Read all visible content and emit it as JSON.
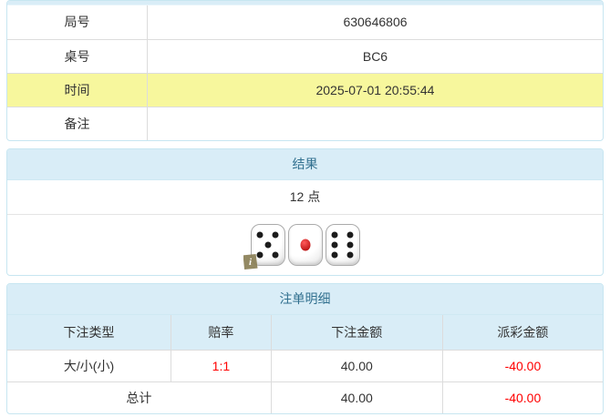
{
  "round_info": {
    "rows": [
      {
        "label": "局号",
        "value": "630646806",
        "highlight": false
      },
      {
        "label": "桌号",
        "value": "BC6",
        "highlight": false
      },
      {
        "label": "时间",
        "value": "2025-07-01 20:55:44",
        "highlight": true
      },
      {
        "label": "备注",
        "value": "",
        "highlight": false
      }
    ]
  },
  "result_panel": {
    "title": "结果",
    "points": "12 点",
    "dice": [
      {
        "value": 5,
        "pip_color": "black"
      },
      {
        "value": 1,
        "pip_color": "red"
      },
      {
        "value": 6,
        "pip_color": "black"
      }
    ],
    "info_badge_label": "i"
  },
  "bets_panel": {
    "title": "注单明细",
    "columns": [
      "下注类型",
      "赔率",
      "下注金额",
      "派彩金额"
    ],
    "rows": [
      {
        "bet_type": "大/小(小)",
        "odds": "1:1",
        "bet_amount": "40.00",
        "payout": "-40.00"
      }
    ],
    "total_row": {
      "label": "总计",
      "bet_amount": "40.00",
      "payout": "-40.00"
    }
  },
  "colors": {
    "panel_header_bg": "#d9edf7",
    "panel_border": "#c7e6f1",
    "panel_title_text": "#31708f",
    "highlight_row_bg": "#f7f79d",
    "negative_value_text": "#ff0000",
    "table_border": "#dcdcdc",
    "body_text": "#333333",
    "red_pip": "#a80000",
    "info_badge_bg": "#8a7f56"
  }
}
